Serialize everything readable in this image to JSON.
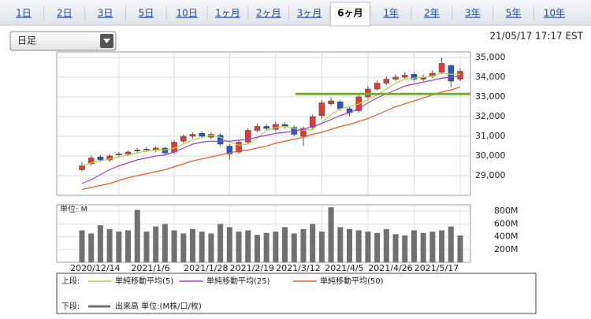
{
  "tabs": [
    {
      "label": "1日"
    },
    {
      "label": "2日"
    },
    {
      "label": "3日"
    },
    {
      "label": "5日"
    },
    {
      "label": "10日"
    },
    {
      "label": "1ヶ月"
    },
    {
      "label": "2ヶ月"
    },
    {
      "label": "3ヶ月"
    },
    {
      "label": "6ヶ月",
      "active": true
    },
    {
      "label": "1年"
    },
    {
      "label": "2年"
    },
    {
      "label": "3年"
    },
    {
      "label": "5年"
    },
    {
      "label": "10年"
    }
  ],
  "dropdown": "日足",
  "timestamp": "21/05/17 17:17 EST",
  "chart_data": [
    {
      "type": "candlestick",
      "legend_title": "上段:",
      "open": [
        29300,
        29600,
        29950,
        29800,
        30050,
        30100,
        30250,
        30300,
        30300,
        30400,
        30200,
        30750,
        31000,
        31150,
        30950,
        31050,
        30500,
        30200,
        30700,
        31300,
        31500,
        31350,
        31600,
        31450,
        31000,
        31450,
        32050,
        32650,
        32750,
        32400,
        32300,
        33000,
        33400,
        33700,
        33900,
        34000,
        34150,
        33900,
        34050,
        34250,
        34600,
        33900
      ],
      "high": [
        29700,
        30050,
        30050,
        30100,
        30200,
        30300,
        30400,
        30450,
        30500,
        30450,
        30800,
        31100,
        31200,
        31250,
        31200,
        31150,
        30600,
        30800,
        31400,
        31650,
        31600,
        31750,
        31700,
        31550,
        31500,
        32100,
        32850,
        32950,
        32850,
        32500,
        33100,
        33550,
        33850,
        34050,
        34150,
        34250,
        34250,
        34150,
        34350,
        35000,
        34600,
        34450
      ],
      "low": [
        29200,
        29500,
        29700,
        29700,
        29950,
        30000,
        30150,
        30200,
        30200,
        30050,
        30100,
        30650,
        30900,
        30900,
        30850,
        30500,
        29800,
        30100,
        30600,
        31200,
        31300,
        31250,
        31400,
        31000,
        30500,
        31300,
        31900,
        32550,
        32300,
        32000,
        32200,
        32900,
        33300,
        33600,
        33800,
        33900,
        33800,
        33800,
        33950,
        34150,
        33500,
        33800
      ],
      "close": [
        29500,
        29900,
        29800,
        30000,
        30100,
        30200,
        30300,
        30350,
        30400,
        30150,
        30700,
        31000,
        31100,
        31000,
        31100,
        30600,
        30100,
        30700,
        31300,
        31500,
        31400,
        31600,
        31500,
        31100,
        31400,
        32000,
        32700,
        32800,
        32400,
        32200,
        33000,
        33400,
        33700,
        33900,
        34000,
        34100,
        33900,
        34000,
        34200,
        34700,
        33800,
        34300
      ],
      "up_color": "#e03a32",
      "down_color": "#2a55c8",
      "series": [
        {
          "name": "単純移動平均(5)",
          "color": "#b5d445",
          "values": [
            29500,
            29650,
            29750,
            29850,
            29950,
            30050,
            30150,
            30250,
            30300,
            30300,
            30400,
            30600,
            30800,
            30950,
            31050,
            30950,
            30700,
            30550,
            30600,
            30900,
            31300,
            31450,
            31500,
            31400,
            31300,
            31350,
            31700,
            32100,
            32400,
            32500,
            32650,
            32850,
            33100,
            33400,
            33700,
            33900,
            33950,
            34000,
            34050,
            34200,
            34150,
            34150
          ]
        },
        {
          "name": "単純移動平均(25)",
          "color": "#a040e0",
          "values": [
            28600,
            28800,
            29050,
            29300,
            29500,
            29650,
            29800,
            29900,
            30000,
            30050,
            30200,
            30400,
            30600,
            30700,
            30750,
            30750,
            30750,
            30800,
            30850,
            30950,
            31050,
            31150,
            31200,
            31250,
            31350,
            31500,
            31650,
            31850,
            32050,
            32200,
            32400,
            32700,
            32950,
            33150,
            33350,
            33550,
            33650,
            33750,
            33850,
            33950,
            34000,
            34050
          ]
        },
        {
          "name": "単純移動平均(50)",
          "color": "#f05a28",
          "values": [
            28300,
            28400,
            28500,
            28600,
            28750,
            28900,
            29000,
            29100,
            29200,
            29300,
            29450,
            29600,
            29750,
            29850,
            29950,
            30050,
            30150,
            30250,
            30300,
            30400,
            30500,
            30650,
            30750,
            30850,
            30950,
            31100,
            31200,
            31350,
            31500,
            31600,
            31750,
            31900,
            32100,
            32300,
            32500,
            32650,
            32800,
            32950,
            33100,
            33250,
            33350,
            33500
          ]
        }
      ],
      "hline": {
        "value": 33150,
        "color": "#7aa83a"
      },
      "ylim": [
        28000,
        35280
      ],
      "yticks": [
        {
          "value": 29000,
          "label": "29,000"
        },
        {
          "value": 30000,
          "label": "30,000"
        },
        {
          "value": 31000,
          "label": "31,000"
        },
        {
          "value": 32000,
          "label": "32,000"
        },
        {
          "value": 33000,
          "label": "33,000"
        },
        {
          "value": 34000,
          "label": "34,000"
        },
        {
          "value": 35000,
          "label": "35,000"
        }
      ],
      "grid": true
    },
    {
      "type": "bar",
      "legend_title": "下段:",
      "y_label": "単位: M",
      "categories": [
        null,
        null,
        null,
        null,
        "2020/12/14",
        null,
        null,
        null,
        null,
        null,
        "2021/1/6",
        null,
        null,
        null,
        null,
        null,
        "2021/1/28",
        null,
        null,
        null,
        null,
        "2021/2/19",
        null,
        null,
        null,
        null,
        "2021/3/12",
        null,
        null,
        null,
        null,
        "2021/4/5",
        null,
        null,
        null,
        null,
        "2021/4/26",
        null,
        null,
        null,
        null,
        "2021/5/17"
      ],
      "series": [
        {
          "name": "出来高 単位:(M株/口/枚)",
          "color": "#707070",
          "values": [
            500,
            450,
            580,
            520,
            480,
            500,
            820,
            480,
            560,
            600,
            500,
            450,
            520,
            480,
            450,
            600,
            550,
            480,
            500,
            430,
            460,
            480,
            550,
            450,
            520,
            600,
            480,
            860,
            550,
            520,
            500,
            480,
            460,
            520,
            440,
            420,
            500,
            460,
            480,
            500,
            560,
            420
          ]
        }
      ],
      "ylim": [
        0,
        900
      ],
      "yticks": [
        {
          "value": 200,
          "label": "200M"
        },
        {
          "value": 400,
          "label": "400M"
        },
        {
          "value": 600,
          "label": "600M"
        },
        {
          "value": 800,
          "label": "800M"
        }
      ],
      "grid": true
    }
  ]
}
